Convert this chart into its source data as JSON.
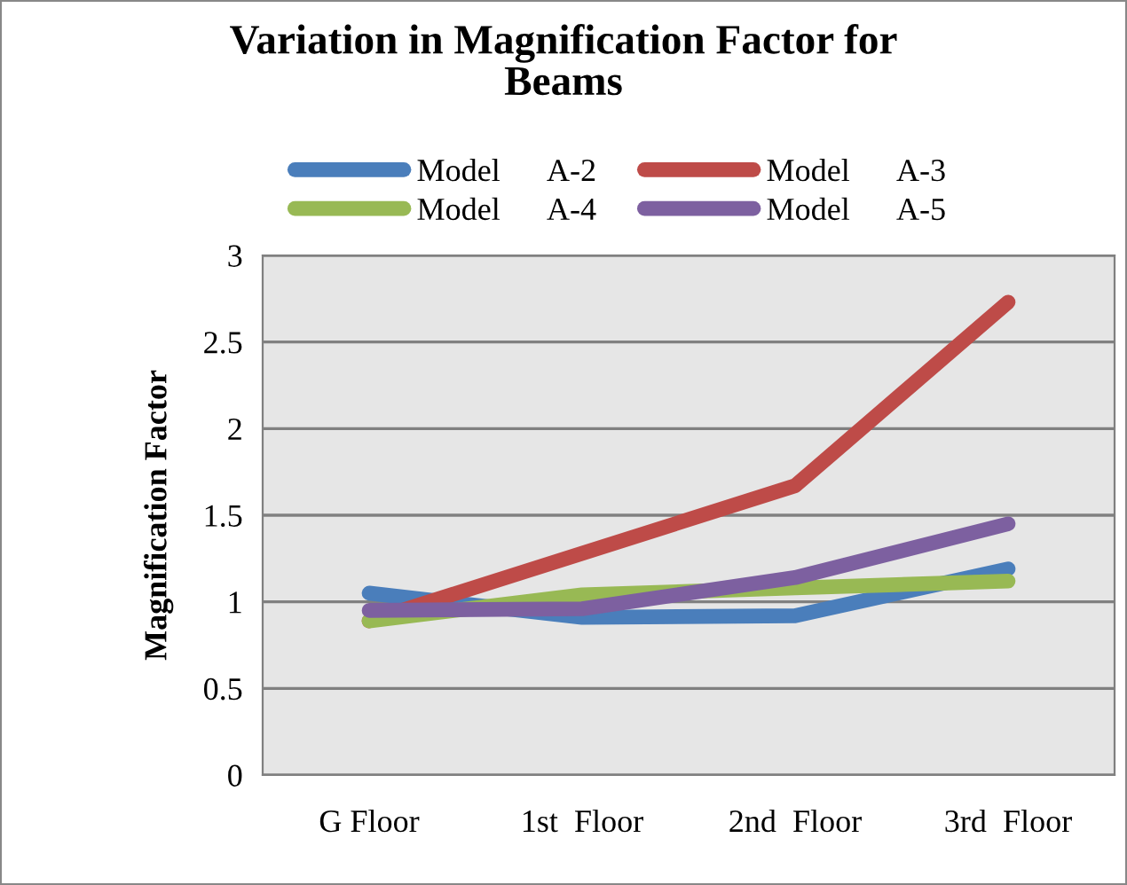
{
  "chart_data": {
    "type": "line",
    "title": "Variation in Magnification Factor for\nBeams",
    "ylabel": "Magnification Factor",
    "categories": [
      "G Floor",
      "1st  Floor",
      "2nd  Floor",
      "3rd  Floor"
    ],
    "series": [
      {
        "name": "Model      A-2",
        "color": "#4a7ebb",
        "values": [
          1.05,
          0.91,
          0.92,
          1.19
        ]
      },
      {
        "name": "Model      A-3",
        "color": "#be4b48",
        "values": [
          0.89,
          1.28,
          1.67,
          2.73
        ]
      },
      {
        "name": "Model      A-4",
        "color": "#98b954",
        "values": [
          0.89,
          1.04,
          1.08,
          1.12
        ]
      },
      {
        "name": "Model      A-5",
        "color": "#7d60a0",
        "values": [
          0.95,
          0.96,
          1.14,
          1.45
        ]
      }
    ],
    "ylim": [
      0,
      3
    ],
    "yticks": [
      0,
      0.5,
      1,
      1.5,
      2,
      2.5,
      3
    ],
    "grid": "y",
    "legend": "top",
    "marker": "none",
    "line_style": "solid"
  }
}
